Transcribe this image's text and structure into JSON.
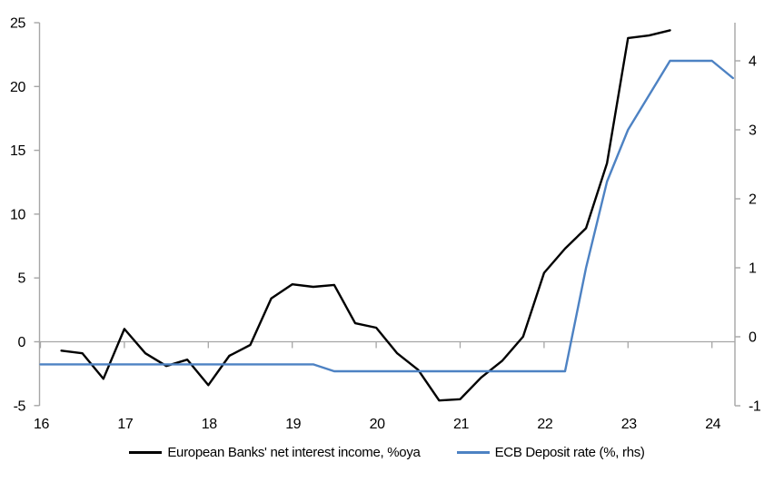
{
  "chart_data": {
    "type": "line",
    "title": "",
    "x_axis": {
      "ticks": [
        16,
        17,
        18,
        19,
        20,
        21,
        22,
        23,
        24
      ],
      "labels": [
        "16",
        "17",
        "18",
        "19",
        "20",
        "21",
        "22",
        "23",
        "24"
      ],
      "unit": "year (quarterly data)"
    },
    "left_axis": {
      "ticks": [
        -5,
        0,
        5,
        10,
        15,
        20,
        25
      ],
      "labels": [
        "-5",
        "0",
        "5",
        "10",
        "15",
        "20",
        "25"
      ],
      "range": [
        -5,
        25.0
      ]
    },
    "right_axis": {
      "ticks": [
        -1,
        0,
        1,
        2,
        3,
        4
      ],
      "labels": [
        "-1",
        "0",
        "1",
        "2",
        "3",
        "4"
      ],
      "range": [
        -1,
        4.55
      ]
    },
    "grid": "zero-line-only",
    "legend_position": "bottom",
    "colors": {
      "nii_line": "#000000",
      "ecb_line": "#4d82c3",
      "axis": "#a6a6a6"
    },
    "series": [
      {
        "name": "European Banks' net interest income, %oya",
        "axis": "left",
        "color": "#000000",
        "x": [
          16.25,
          16.5,
          16.75,
          17.0,
          17.25,
          17.5,
          17.75,
          18.0,
          18.25,
          18.5,
          18.75,
          19.0,
          19.25,
          19.5,
          19.75,
          20.0,
          20.25,
          20.5,
          20.75,
          21.0,
          21.25,
          21.5,
          21.75,
          22.0,
          22.25,
          22.5,
          22.75,
          23.0,
          23.25,
          23.5
        ],
        "values": [
          -0.7,
          -0.9,
          -2.9,
          1.0,
          -0.9,
          -1.9,
          -1.4,
          -3.4,
          -1.1,
          -0.25,
          3.4,
          4.5,
          4.3,
          4.45,
          1.45,
          1.1,
          -0.9,
          -2.2,
          -4.6,
          -4.5,
          -2.8,
          -1.5,
          0.4,
          5.4,
          7.3,
          8.9,
          14.0,
          23.8,
          24.0,
          24.4
        ]
      },
      {
        "name": "ECB Deposit rate (%, rhs)",
        "axis": "right",
        "color": "#4d82c3",
        "x": [
          16.0,
          19.25,
          19.5,
          22.25,
          22.5,
          22.75,
          23.0,
          23.25,
          23.5,
          24.0,
          24.25
        ],
        "values": [
          -0.4,
          -0.4,
          -0.5,
          -0.5,
          1.0,
          2.25,
          3.0,
          3.5,
          4.0,
          4.0,
          3.75
        ]
      }
    ]
  }
}
